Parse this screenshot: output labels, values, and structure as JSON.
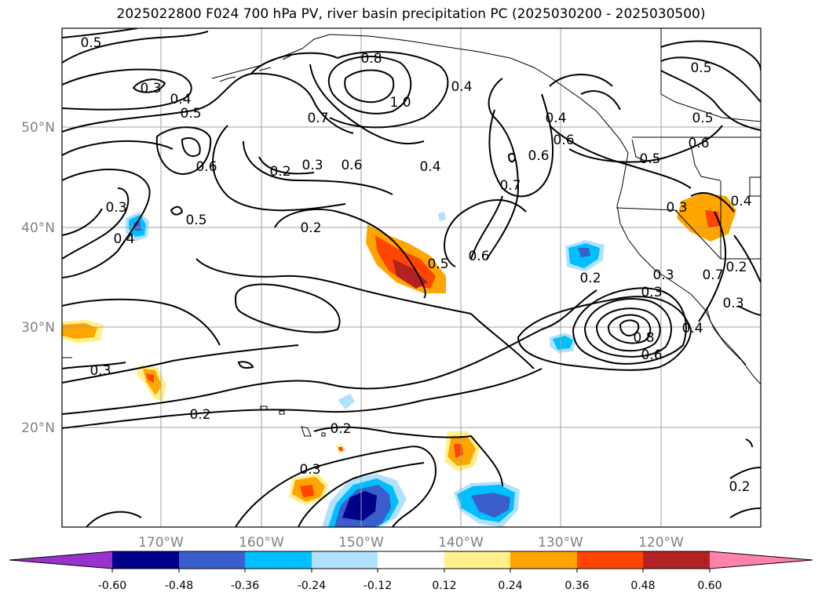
{
  "title": "2025022800 F024 700 hPa PV, river basin precipitation PC (2025030200 - 2025030500)",
  "map": {
    "lat_labels": [
      "50°N",
      "40°N",
      "30°N",
      "20°N"
    ],
    "lon_labels": [
      "170°W",
      "160°W",
      "150°W",
      "140°W",
      "130°W",
      "120°W"
    ],
    "contour_labels": [
      "0.5",
      "0.3",
      "0.4",
      "0.5",
      "0.8",
      "1.0",
      "0.4",
      "0.4",
      "0.6",
      "0.5",
      "0.6",
      "0.7",
      "0.2",
      "0.3",
      "0.6",
      "0.6",
      "0.4",
      "0.7",
      "0.3",
      "0.4",
      "0.6",
      "0.5",
      "0.2",
      "0.5",
      "0.6",
      "0.5",
      "0.2",
      "0.3",
      "0.5",
      "0.3",
      "0.4",
      "0.2",
      "0.3",
      "0.7",
      "0.3",
      "0.8",
      "0.6",
      "0.4",
      "0.3",
      "0.2",
      "0.2",
      "0.3",
      "0.2"
    ]
  },
  "colorbar": {
    "colors": [
      "#9932cc",
      "#00008b",
      "#3a5fcd",
      "#00bfff",
      "#b0e2ff",
      "#ffffff",
      "#fff08c",
      "#ffa500",
      "#ff4500",
      "#b22222",
      "#ff82ab"
    ],
    "ticks": [
      "-0.60",
      "-0.48",
      "-0.36",
      "-0.24",
      "-0.12",
      "0.12",
      "0.24",
      "0.36",
      "0.48",
      "0.60"
    ]
  }
}
